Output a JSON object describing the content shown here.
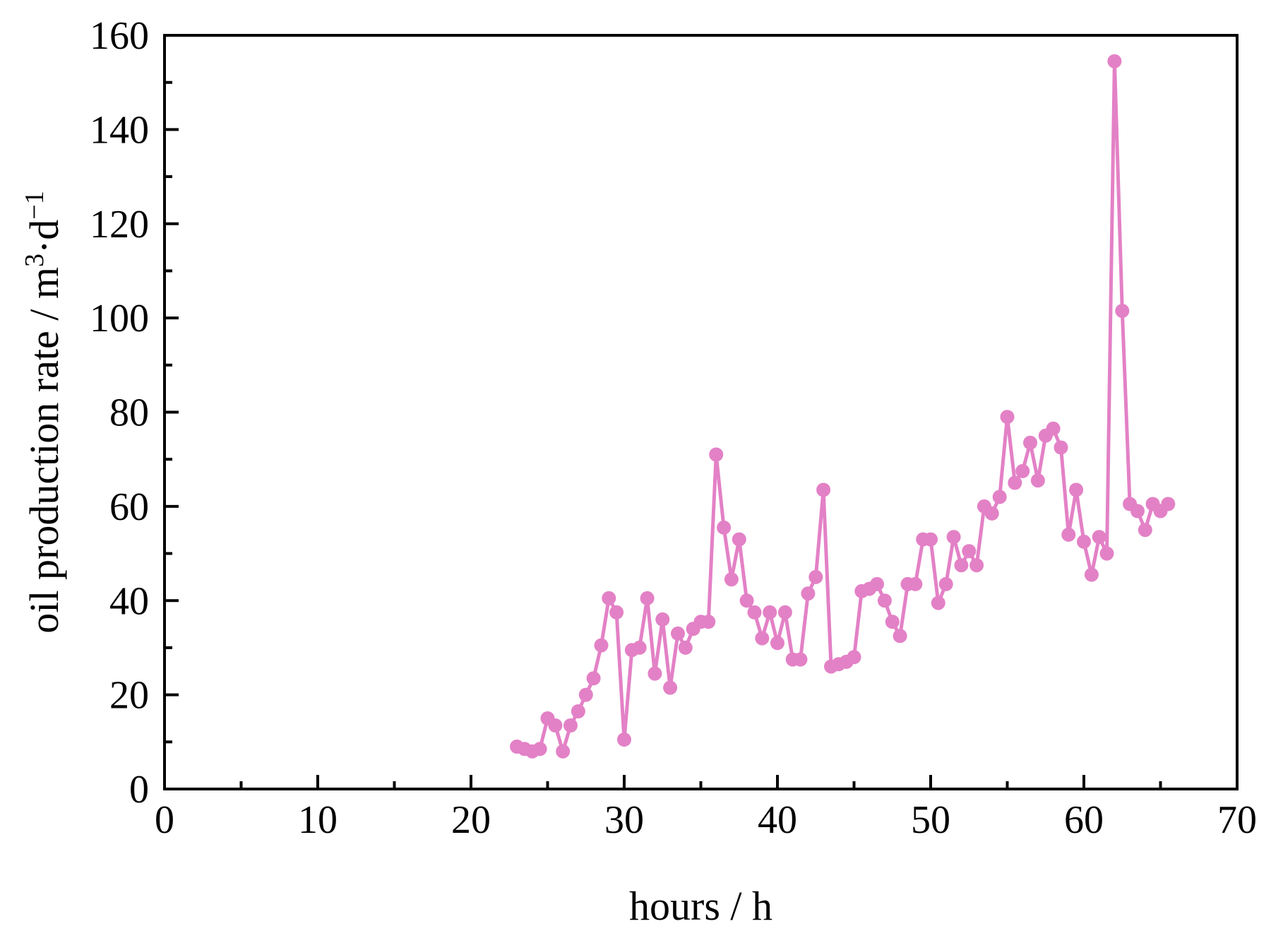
{
  "chart_data": {
    "type": "line",
    "title": "",
    "xlabel": "hours / h",
    "ylabel": {
      "main": "oil production rate / m",
      "sup1": "3",
      "mid": "·d",
      "sup2": "−1"
    },
    "xlim": [
      0,
      70
    ],
    "ylim": [
      0,
      160
    ],
    "x_ticks": [
      0,
      10,
      20,
      30,
      40,
      50,
      60,
      70
    ],
    "y_ticks": [
      0,
      20,
      40,
      60,
      80,
      100,
      120,
      140,
      160
    ],
    "x_minor_step": 5,
    "y_minor_step": 10,
    "grid": false,
    "legend": "none",
    "series": [
      {
        "color": "#e381c6",
        "marker": "circle",
        "x": [
          23.0,
          23.5,
          24.0,
          24.5,
          25.0,
          25.5,
          26.0,
          26.5,
          27.0,
          27.5,
          28.0,
          28.5,
          29.0,
          29.5,
          30.0,
          30.5,
          31.0,
          31.5,
          32.0,
          32.5,
          33.0,
          33.5,
          34.0,
          34.5,
          35.0,
          35.5,
          36.0,
          36.5,
          37.0,
          37.5,
          38.0,
          38.5,
          39.0,
          39.5,
          40.0,
          40.5,
          41.0,
          41.5,
          42.0,
          42.5,
          43.0,
          43.5,
          44.0,
          44.5,
          45.0,
          45.5,
          46.0,
          46.5,
          47.0,
          47.5,
          48.0,
          48.5,
          49.0,
          49.5,
          50.0,
          50.5,
          51.0,
          51.5,
          52.0,
          52.5,
          53.0,
          53.5,
          54.0,
          54.5,
          55.0,
          55.5,
          56.0,
          56.5,
          57.0,
          57.5,
          58.0,
          58.5,
          59.0,
          59.5,
          60.0,
          60.5,
          61.0,
          61.5,
          62.0,
          62.5,
          63.0,
          63.5,
          64.0,
          64.5,
          65.0,
          65.5
        ],
        "y": [
          9.0,
          8.5,
          8.0,
          8.5,
          15.0,
          13.5,
          8.0,
          13.5,
          16.5,
          20.0,
          23.5,
          30.5,
          40.5,
          37.5,
          10.5,
          29.5,
          30.0,
          40.5,
          24.5,
          36.0,
          21.5,
          33.0,
          30.0,
          34.0,
          35.5,
          35.5,
          71.0,
          55.5,
          44.5,
          53.0,
          40.0,
          37.5,
          32.0,
          37.5,
          31.0,
          37.5,
          27.5,
          27.5,
          41.5,
          45.0,
          63.5,
          26.0,
          26.5,
          27.0,
          28.0,
          42.0,
          42.5,
          43.5,
          40.0,
          35.5,
          32.5,
          43.5,
          43.5,
          53.0,
          53.0,
          39.5,
          43.5,
          53.5,
          47.5,
          50.5,
          47.5,
          60.0,
          58.5,
          62.0,
          79.0,
          65.0,
          67.5,
          73.5,
          65.5,
          75.0,
          76.5,
          72.5,
          54.0,
          63.5,
          52.5,
          45.5,
          53.5,
          50.0,
          154.5,
          101.5,
          60.5,
          59.0,
          55.0,
          60.5,
          59.0,
          60.5
        ]
      }
    ]
  }
}
